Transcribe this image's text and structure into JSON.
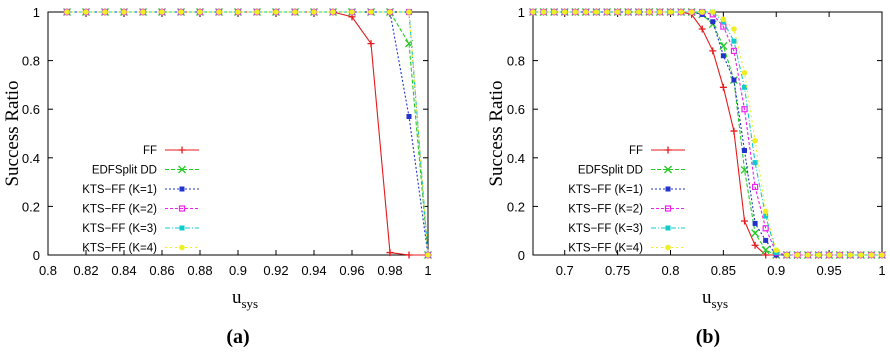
{
  "chart_data": [
    {
      "type": "line",
      "caption": "(a)",
      "xlabel_main": "u",
      "xlabel_sub": "sys",
      "ylabel": "Success Ratio",
      "xlim": [
        0.8,
        1.0
      ],
      "ylim": [
        0,
        1
      ],
      "x_ticks": [
        "0.8",
        "0.82",
        "0.84",
        "0.86",
        "0.88",
        "0.9",
        "0.92",
        "0.94",
        "0.96",
        "0.98",
        "1"
      ],
      "x_tick_values": [
        0.8,
        0.82,
        0.84,
        0.86,
        0.88,
        0.9,
        0.92,
        0.94,
        0.96,
        0.98,
        1.0
      ],
      "y_ticks": [
        "0",
        "0.2",
        "0.4",
        "0.6",
        "0.8",
        "1"
      ],
      "y_tick_values": [
        0,
        0.2,
        0.4,
        0.6,
        0.8,
        1.0
      ],
      "grid": false,
      "legend_position": "bottom-left",
      "series": [
        {
          "name": "FF",
          "color": "#e41a1c",
          "marker": "plus",
          "dash": "",
          "x": [
            0.81,
            0.82,
            0.83,
            0.84,
            0.85,
            0.86,
            0.87,
            0.88,
            0.89,
            0.9,
            0.91,
            0.92,
            0.93,
            0.94,
            0.95,
            0.96,
            0.97,
            0.98,
            0.99,
            1.0
          ],
          "y": [
            1,
            1,
            1,
            1,
            1,
            1,
            1,
            1,
            1,
            1,
            1,
            1,
            1,
            1,
            1,
            0.98,
            0.87,
            0.01,
            0.0,
            0.0
          ]
        },
        {
          "name": "EDFSplit DD",
          "color": "#22cc22",
          "marker": "x",
          "dash": "4,2",
          "x": [
            0.81,
            0.82,
            0.83,
            0.84,
            0.85,
            0.86,
            0.87,
            0.88,
            0.89,
            0.9,
            0.91,
            0.92,
            0.93,
            0.94,
            0.95,
            0.96,
            0.97,
            0.98,
            0.99,
            1.0
          ],
          "y": [
            1,
            1,
            1,
            1,
            1,
            1,
            1,
            1,
            1,
            1,
            1,
            1,
            1,
            1,
            1,
            1,
            1,
            1,
            0.87,
            0.0
          ]
        },
        {
          "name": "KTS−FF (K=1)",
          "color": "#2233cc",
          "marker": "square",
          "dash": "2,2",
          "x": [
            0.81,
            0.82,
            0.83,
            0.84,
            0.85,
            0.86,
            0.87,
            0.88,
            0.89,
            0.9,
            0.91,
            0.92,
            0.93,
            0.94,
            0.95,
            0.96,
            0.97,
            0.98,
            0.99,
            1.0
          ],
          "y": [
            1,
            1,
            1,
            1,
            1,
            1,
            1,
            1,
            1,
            1,
            1,
            1,
            1,
            1,
            1,
            1,
            1,
            1,
            0.57,
            0.0
          ]
        },
        {
          "name": "KTS−FF (K=2)",
          "color": "#ee22ee",
          "marker": "square-open",
          "dash": "3,2",
          "x": [
            0.81,
            0.82,
            0.83,
            0.84,
            0.85,
            0.86,
            0.87,
            0.88,
            0.89,
            0.9,
            0.91,
            0.92,
            0.93,
            0.94,
            0.95,
            0.96,
            0.97,
            0.98,
            0.99,
            1.0
          ],
          "y": [
            1,
            1,
            1,
            1,
            1,
            1,
            1,
            1,
            1,
            1,
            1,
            1,
            1,
            1,
            1,
            1,
            1,
            1,
            1,
            0.0
          ]
        },
        {
          "name": "KTS−FF (K=3)",
          "color": "#11cccc",
          "marker": "square",
          "dash": "5,2,1,2",
          "x": [
            0.81,
            0.82,
            0.83,
            0.84,
            0.85,
            0.86,
            0.87,
            0.88,
            0.89,
            0.9,
            0.91,
            0.92,
            0.93,
            0.94,
            0.95,
            0.96,
            0.97,
            0.98,
            0.99,
            1.0
          ],
          "y": [
            1,
            1,
            1,
            1,
            1,
            1,
            1,
            1,
            1,
            1,
            1,
            1,
            1,
            1,
            1,
            1,
            1,
            1,
            1,
            0.0
          ]
        },
        {
          "name": "KTS−FF (K=4)",
          "color": "#eeee22",
          "marker": "circle",
          "dash": "2,3",
          "x": [
            0.81,
            0.82,
            0.83,
            0.84,
            0.85,
            0.86,
            0.87,
            0.88,
            0.89,
            0.9,
            0.91,
            0.92,
            0.93,
            0.94,
            0.95,
            0.96,
            0.97,
            0.98,
            0.99,
            1.0
          ],
          "y": [
            1,
            1,
            1,
            1,
            1,
            1,
            1,
            1,
            1,
            1,
            1,
            1,
            1,
            1,
            1,
            1,
            1,
            1,
            1,
            0.0
          ]
        }
      ]
    },
    {
      "type": "line",
      "caption": "(b)",
      "xlabel_main": "u",
      "xlabel_sub": "sys",
      "ylabel": "Success Ratio",
      "xlim": [
        0.67,
        1.0
      ],
      "ylim": [
        0,
        1
      ],
      "x_ticks": [
        "0.7",
        "0.75",
        "0.8",
        "0.85",
        "0.9",
        "0.95",
        "1"
      ],
      "x_tick_values": [
        0.7,
        0.75,
        0.8,
        0.85,
        0.9,
        0.95,
        1.0
      ],
      "y_ticks": [
        "0",
        "0.2",
        "0.4",
        "0.6",
        "0.8",
        "1"
      ],
      "y_tick_values": [
        0,
        0.2,
        0.4,
        0.6,
        0.8,
        1.0
      ],
      "grid": false,
      "legend_position": "bottom-left",
      "series": [
        {
          "name": "FF",
          "color": "#e41a1c",
          "marker": "plus",
          "dash": "",
          "x": [
            0.67,
            0.68,
            0.69,
            0.7,
            0.71,
            0.72,
            0.73,
            0.74,
            0.75,
            0.76,
            0.77,
            0.78,
            0.79,
            0.8,
            0.81,
            0.82,
            0.83,
            0.84,
            0.85,
            0.86,
            0.87,
            0.88,
            0.89,
            0.9,
            0.91,
            0.92,
            0.93,
            0.94,
            0.95,
            0.96,
            0.97,
            0.98,
            0.99,
            1.0
          ],
          "y": [
            1,
            1,
            1,
            1,
            1,
            1,
            1,
            1,
            1,
            1,
            1,
            1,
            1,
            1,
            1,
            0.99,
            0.93,
            0.84,
            0.69,
            0.51,
            0.14,
            0.04,
            0.0,
            0.0,
            0.0,
            0.0,
            0.0,
            0.0,
            0.0,
            0.0,
            0.0,
            0.0,
            0.0,
            0.0
          ]
        },
        {
          "name": "EDFSplit DD",
          "color": "#22cc22",
          "marker": "x",
          "dash": "4,2",
          "x": [
            0.67,
            0.68,
            0.69,
            0.7,
            0.71,
            0.72,
            0.73,
            0.74,
            0.75,
            0.76,
            0.77,
            0.78,
            0.79,
            0.8,
            0.81,
            0.82,
            0.83,
            0.84,
            0.85,
            0.86,
            0.87,
            0.88,
            0.89,
            0.9,
            0.91,
            0.92,
            0.93,
            0.94,
            0.95,
            0.96,
            0.97,
            0.98,
            0.99,
            1.0
          ],
          "y": [
            1,
            1,
            1,
            1,
            1,
            1,
            1,
            1,
            1,
            1,
            1,
            1,
            1,
            1,
            1,
            1,
            0.99,
            0.95,
            0.86,
            0.72,
            0.35,
            0.09,
            0.02,
            0.0,
            0.0,
            0.0,
            0.0,
            0.0,
            0.0,
            0.0,
            0.0,
            0.0,
            0.0,
            0.0
          ]
        },
        {
          "name": "KTS−FF (K=1)",
          "color": "#2233cc",
          "marker": "square",
          "dash": "2,2",
          "x": [
            0.67,
            0.68,
            0.69,
            0.7,
            0.71,
            0.72,
            0.73,
            0.74,
            0.75,
            0.76,
            0.77,
            0.78,
            0.79,
            0.8,
            0.81,
            0.82,
            0.83,
            0.84,
            0.85,
            0.86,
            0.87,
            0.88,
            0.89,
            0.9,
            0.91,
            0.92,
            0.93,
            0.94,
            0.95,
            0.96,
            0.97,
            0.98,
            0.99,
            1.0
          ],
          "y": [
            1,
            1,
            1,
            1,
            1,
            1,
            1,
            1,
            1,
            1,
            1,
            1,
            1,
            1,
            1,
            1,
            0.99,
            0.96,
            0.82,
            0.72,
            0.43,
            0.13,
            0.06,
            0.0,
            0.0,
            0.0,
            0.0,
            0.0,
            0.0,
            0.0,
            0.0,
            0.0,
            0.0,
            0.0
          ]
        },
        {
          "name": "KTS−FF (K=2)",
          "color": "#ee22ee",
          "marker": "square-open",
          "dash": "3,2",
          "x": [
            0.67,
            0.68,
            0.69,
            0.7,
            0.71,
            0.72,
            0.73,
            0.74,
            0.75,
            0.76,
            0.77,
            0.78,
            0.79,
            0.8,
            0.81,
            0.82,
            0.83,
            0.84,
            0.85,
            0.86,
            0.87,
            0.88,
            0.89,
            0.9,
            0.91,
            0.92,
            0.93,
            0.94,
            0.95,
            0.96,
            0.97,
            0.98,
            0.99,
            1.0
          ],
          "y": [
            1,
            1,
            1,
            1,
            1,
            1,
            1,
            1,
            1,
            1,
            1,
            1,
            1,
            1,
            1,
            1,
            1,
            0.99,
            0.94,
            0.84,
            0.6,
            0.28,
            0.11,
            0.01,
            0.0,
            0.0,
            0.0,
            0.0,
            0.0,
            0.0,
            0.0,
            0.0,
            0.0,
            0.0
          ]
        },
        {
          "name": "KTS−FF (K=3)",
          "color": "#11cccc",
          "marker": "square",
          "dash": "5,2,1,2",
          "x": [
            0.67,
            0.68,
            0.69,
            0.7,
            0.71,
            0.72,
            0.73,
            0.74,
            0.75,
            0.76,
            0.77,
            0.78,
            0.79,
            0.8,
            0.81,
            0.82,
            0.83,
            0.84,
            0.85,
            0.86,
            0.87,
            0.88,
            0.89,
            0.9,
            0.91,
            0.92,
            0.93,
            0.94,
            0.95,
            0.96,
            0.97,
            0.98,
            0.99,
            1.0
          ],
          "y": [
            1,
            1,
            1,
            1,
            1,
            1,
            1,
            1,
            1,
            1,
            1,
            1,
            1,
            1,
            1,
            1,
            1,
            1,
            0.96,
            0.88,
            0.69,
            0.38,
            0.16,
            0.01,
            0.0,
            0.0,
            0.0,
            0.0,
            0.0,
            0.0,
            0.0,
            0.0,
            0.0,
            0.0
          ]
        },
        {
          "name": "KTS−FF (K=4)",
          "color": "#eeee22",
          "marker": "circle",
          "dash": "2,3",
          "x": [
            0.67,
            0.68,
            0.69,
            0.7,
            0.71,
            0.72,
            0.73,
            0.74,
            0.75,
            0.76,
            0.77,
            0.78,
            0.79,
            0.8,
            0.81,
            0.82,
            0.83,
            0.84,
            0.85,
            0.86,
            0.87,
            0.88,
            0.89,
            0.9,
            0.91,
            0.92,
            0.93,
            0.94,
            0.95,
            0.96,
            0.97,
            0.98,
            0.99,
            1.0
          ],
          "y": [
            1,
            1,
            1,
            1,
            1,
            1,
            1,
            1,
            1,
            1,
            1,
            1,
            1,
            1,
            1,
            1,
            1,
            1,
            0.97,
            0.93,
            0.75,
            0.47,
            0.18,
            0.02,
            0.0,
            0.0,
            0.0,
            0.0,
            0.0,
            0.0,
            0.0,
            0.0,
            0.0,
            0.0
          ]
        }
      ]
    }
  ]
}
